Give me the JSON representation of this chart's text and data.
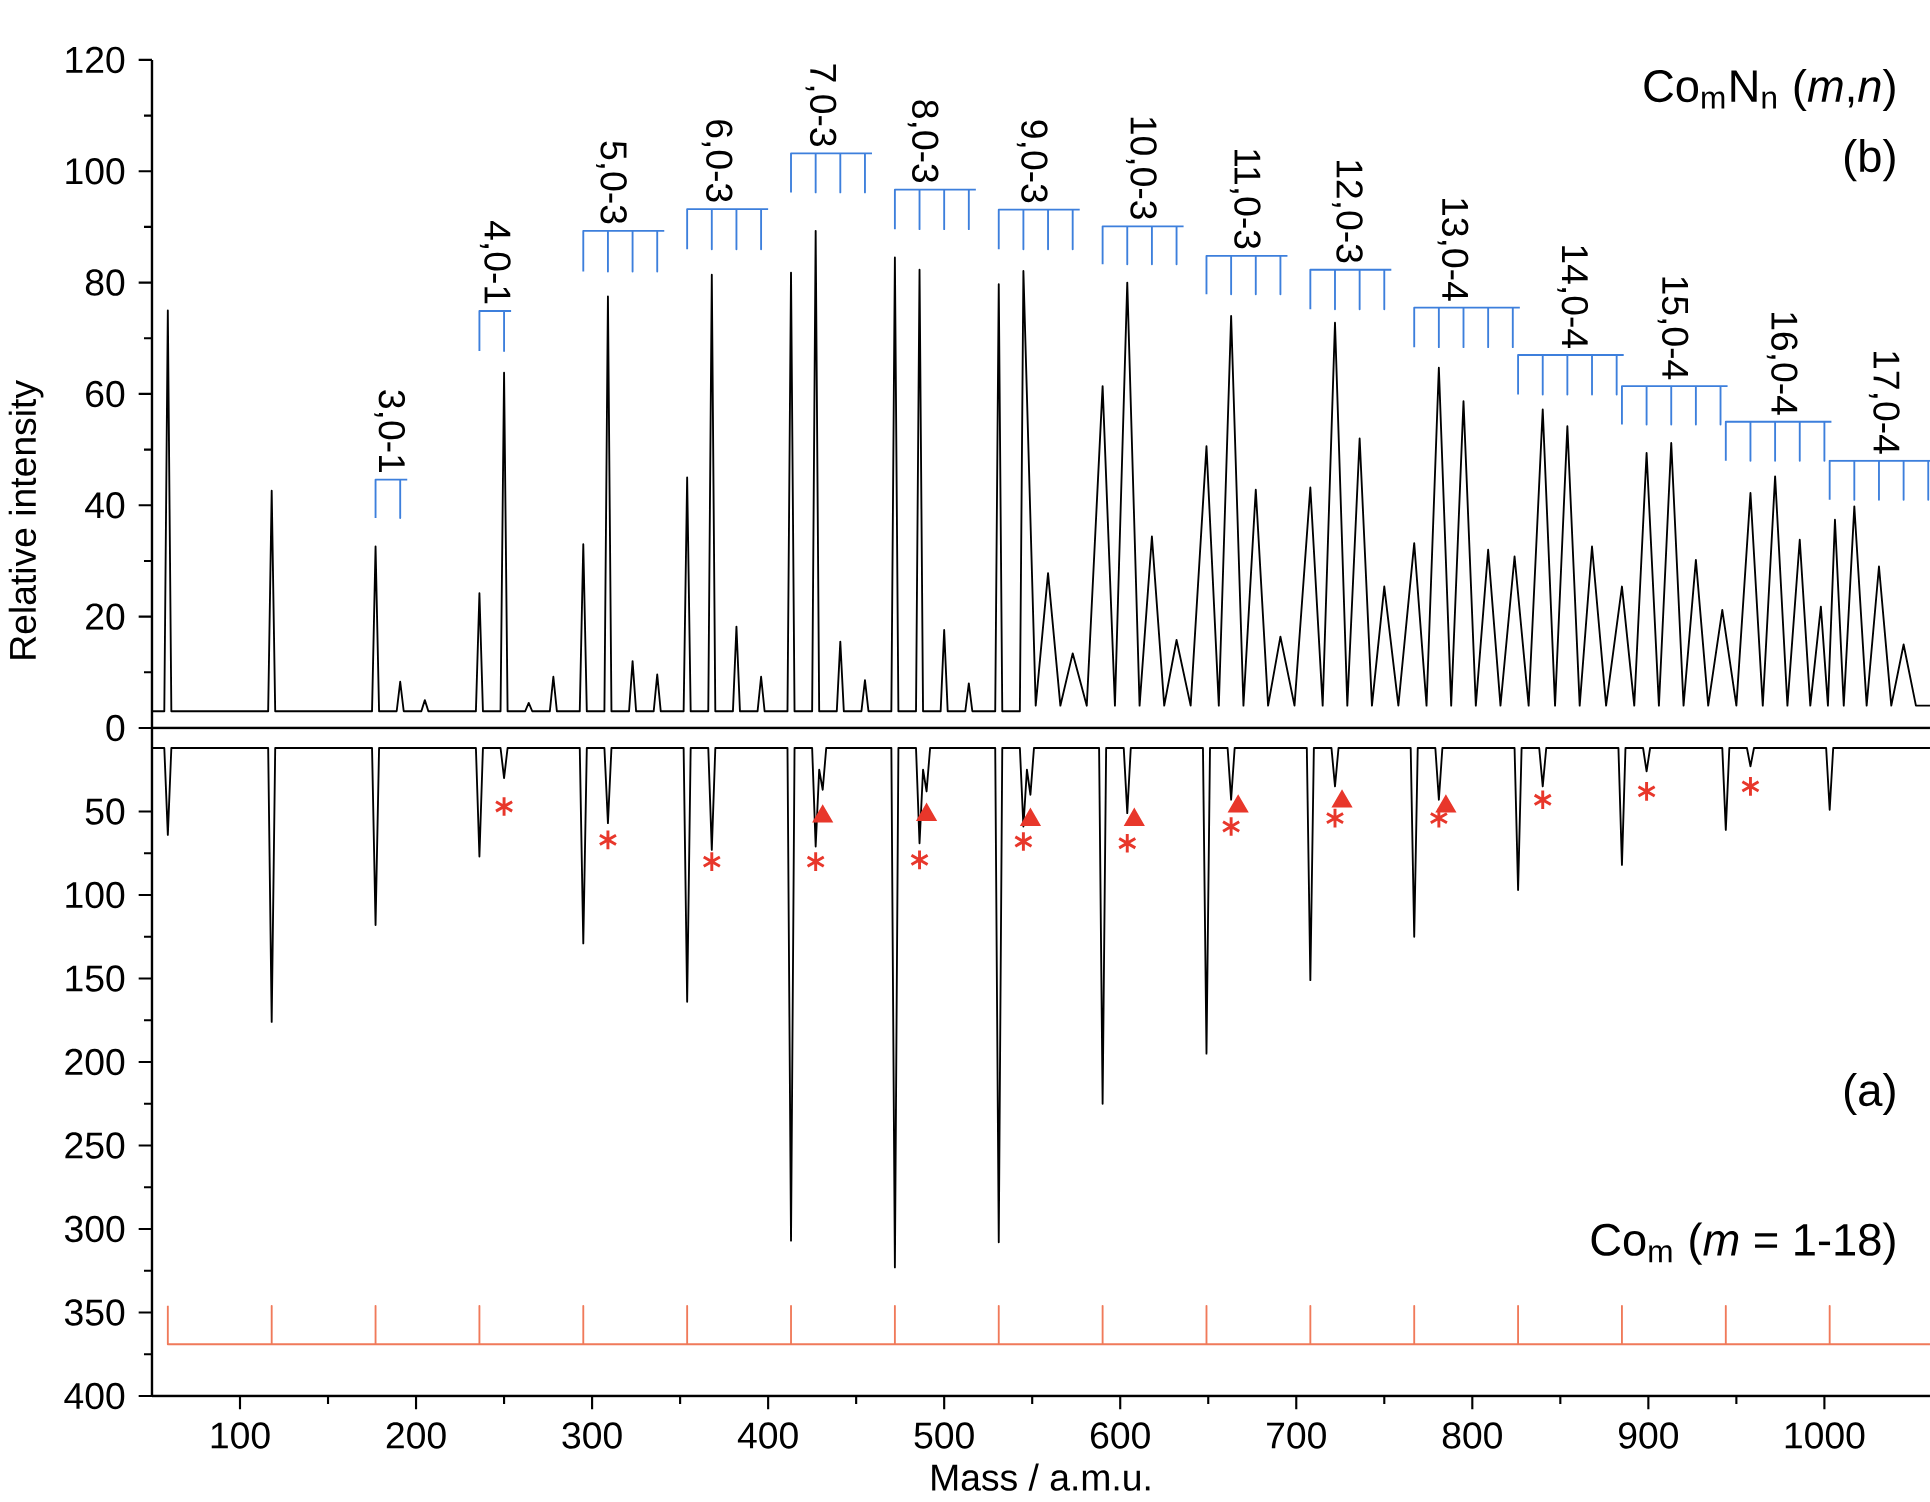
{
  "chart_data": [
    {
      "type": "line",
      "xlim": [
        50,
        1060
      ],
      "ylim": [
        0,
        120
      ],
      "yticks": [
        0,
        20,
        40,
        60,
        80,
        100,
        120
      ],
      "ylabel": "Relative intensity",
      "tick_labels": "y",
      "series": [
        {
          "color": "#000000",
          "x": [
            50,
            57,
            59,
            61,
            116,
            118,
            120,
            175,
            177,
            179,
            189,
            191,
            193,
            203,
            205,
            207,
            234,
            236,
            238,
            248,
            250,
            252,
            262,
            264,
            266,
            276,
            278,
            280,
            293,
            295,
            297,
            307,
            309,
            311,
            321,
            323,
            325,
            335,
            337,
            339,
            352,
            354,
            356,
            366,
            368,
            370,
            380,
            382,
            384,
            394,
            396,
            398,
            411,
            413,
            415,
            425,
            427,
            429,
            439,
            441,
            443,
            453,
            455,
            457,
            470,
            472,
            474,
            484,
            486,
            488,
            498,
            500,
            502,
            512,
            514,
            516,
            529,
            531,
            533,
            543,
            545,
            552,
            559,
            566,
            573,
            581,
            590,
            597,
            604,
            611,
            618,
            625,
            632,
            640,
            649,
            656,
            663,
            670,
            677,
            684,
            691,
            699,
            708,
            715,
            722,
            729,
            736,
            743,
            750,
            758,
            767,
            774,
            781,
            788,
            795,
            802,
            809,
            816,
            824,
            832,
            840,
            847,
            854,
            861,
            868,
            876,
            885,
            892,
            899,
            906,
            913,
            920,
            927,
            934,
            942,
            950,
            958,
            965,
            972,
            979,
            986,
            992,
            998,
            1002,
            1006,
            1011,
            1017,
            1024,
            1031,
            1038,
            1045,
            1052,
            1060
          ],
          "values": [
            3,
            3,
            75,
            3,
            3,
            42.6,
            3,
            3,
            32.6,
            3,
            3,
            8.3,
            3,
            3,
            5,
            3,
            3,
            24.2,
            3,
            3,
            63.8,
            3,
            3,
            4.5,
            3,
            3,
            9.2,
            3,
            3,
            33,
            3,
            3,
            77.5,
            3,
            3,
            12,
            3,
            3,
            9.6,
            3,
            3,
            45,
            3,
            3,
            81.4,
            3,
            3,
            18.2,
            3,
            3,
            9.2,
            3,
            3,
            81.8,
            3,
            3,
            89.3,
            3,
            3,
            15.5,
            3,
            3,
            8.6,
            3,
            3,
            84.5,
            3,
            3,
            82.3,
            3,
            3,
            17.6,
            3,
            3,
            8,
            3,
            3,
            79.7,
            3,
            3,
            82.1,
            4,
            27.8,
            4,
            13.4,
            4,
            61.4,
            4,
            80,
            4,
            34.4,
            4,
            15.8,
            4,
            50.6,
            4,
            74,
            4,
            42.8,
            4,
            16.4,
            4,
            43.2,
            4,
            72.8,
            4,
            52,
            4,
            25.4,
            4,
            33.2,
            4,
            64.7,
            4,
            58.7,
            4,
            32,
            4,
            30.8,
            4,
            57.2,
            4,
            54.2,
            4,
            32.6,
            4,
            25.4,
            4,
            49.4,
            4,
            51.2,
            4,
            30.2,
            4,
            21.2,
            4,
            42.2,
            4,
            45.2,
            4,
            33.8,
            4,
            21.8,
            4,
            37.4,
            4,
            39.8,
            4,
            29,
            4,
            15,
            4,
            4
          ]
        },
        {
          "color": "#3d7fdc",
          "x": [
            177,
            177,
            191,
            191,
            191,
            195
          ],
          "values": [
            37.7,
            44.6,
            44.6,
            37.7,
            44.6,
            44.6
          ]
        },
        {
          "color": "#3d7fdc",
          "x": [
            236,
            236,
            250,
            250,
            250,
            254
          ],
          "values": [
            67.7,
            74.9,
            74.9,
            67.7,
            74.9,
            74.9
          ]
        },
        {
          "color": "#3d7fdc",
          "x": [
            295,
            295,
            309,
            309,
            309,
            323,
            323,
            323,
            337,
            337,
            337,
            341
          ],
          "values": [
            82,
            89.3,
            89.3,
            82,
            89.3,
            89.3,
            82,
            89.3,
            89.3,
            82,
            89.3,
            89.3
          ]
        },
        {
          "color": "#3d7fdc",
          "x": [
            354,
            354,
            368,
            368,
            368,
            382,
            382,
            382,
            396,
            396,
            396,
            400
          ],
          "values": [
            86,
            93.2,
            93.2,
            86,
            93.2,
            93.2,
            86,
            93.2,
            93.2,
            86,
            93.2,
            93.2
          ]
        },
        {
          "color": "#3d7fdc",
          "x": [
            413,
            413,
            427,
            427,
            427,
            441,
            441,
            441,
            455,
            455,
            455,
            459
          ],
          "values": [
            96.2,
            103.2,
            103.2,
            96.2,
            103.2,
            103.2,
            96.2,
            103.2,
            103.2,
            96.2,
            103.2,
            103.2
          ]
        },
        {
          "color": "#3d7fdc",
          "x": [
            472,
            472,
            486,
            486,
            486,
            500,
            500,
            500,
            514,
            514,
            514,
            518
          ],
          "values": [
            89.6,
            96.7,
            96.7,
            89.6,
            96.7,
            96.7,
            89.6,
            96.7,
            96.7,
            89.6,
            96.7,
            96.7
          ]
        },
        {
          "color": "#3d7fdc",
          "x": [
            531,
            531,
            545,
            545,
            545,
            559,
            559,
            559,
            573,
            573,
            573,
            577
          ],
          "values": [
            86,
            93.1,
            93.1,
            86,
            93.1,
            93.1,
            86,
            93.1,
            93.1,
            86,
            93.1,
            93.1
          ]
        },
        {
          "color": "#3d7fdc",
          "x": [
            590,
            590,
            604,
            604,
            604,
            618,
            618,
            618,
            632,
            632,
            632,
            636
          ],
          "values": [
            83.3,
            90.1,
            90.1,
            83.3,
            90.1,
            90.1,
            83.3,
            90.1,
            90.1,
            83.3,
            90.1,
            90.1
          ]
        },
        {
          "color": "#3d7fdc",
          "x": [
            649,
            649,
            663,
            663,
            663,
            677,
            677,
            677,
            691,
            691,
            691,
            695
          ],
          "values": [
            77.9,
            84.8,
            84.8,
            77.9,
            84.8,
            84.8,
            77.9,
            84.8,
            84.8,
            77.9,
            84.8,
            84.8
          ]
        },
        {
          "color": "#3d7fdc",
          "x": [
            708,
            708,
            722,
            722,
            722,
            736,
            736,
            736,
            750,
            750,
            750,
            754
          ],
          "values": [
            75.2,
            82.3,
            82.3,
            75.2,
            82.3,
            82.3,
            75.2,
            82.3,
            82.3,
            75.2,
            82.3,
            82.3
          ]
        },
        {
          "color": "#3d7fdc",
          "x": [
            767,
            767,
            781,
            781,
            781,
            795,
            795,
            795,
            809,
            809,
            809,
            823,
            823,
            823,
            827
          ],
          "values": [
            68.4,
            75.5,
            75.5,
            68.4,
            75.5,
            75.5,
            68.4,
            75.5,
            75.5,
            68.4,
            75.5,
            75.5,
            68.4,
            75.5,
            75.5
          ]
        },
        {
          "color": "#3d7fdc",
          "x": [
            826,
            826,
            840,
            840,
            840,
            854,
            854,
            854,
            868,
            868,
            868,
            882,
            882,
            882,
            886
          ],
          "values": [
            59.9,
            67,
            67,
            59.9,
            67,
            67,
            59.9,
            67,
            67,
            59.9,
            67,
            67,
            59.9,
            67,
            67
          ]
        },
        {
          "color": "#3d7fdc",
          "x": [
            885,
            885,
            899,
            899,
            899,
            913,
            913,
            913,
            927,
            927,
            927,
            941,
            941,
            941,
            945
          ],
          "values": [
            54.5,
            61.4,
            61.4,
            54.5,
            61.4,
            61.4,
            54.5,
            61.4,
            61.4,
            54.5,
            61.4,
            61.4,
            54.5,
            61.4,
            61.4
          ]
        },
        {
          "color": "#3d7fdc",
          "x": [
            944,
            944,
            958,
            958,
            958,
            972,
            972,
            972,
            986,
            986,
            986,
            1000,
            1000,
            1000,
            1004
          ],
          "values": [
            48,
            55,
            55,
            48,
            55,
            55,
            48,
            55,
            55,
            48,
            55,
            55,
            48,
            55,
            55
          ]
        },
        {
          "color": "#3d7fdc",
          "x": [
            1003,
            1003,
            1017,
            1017,
            1017,
            1031,
            1031,
            1031,
            1045,
            1045,
            1045,
            1059,
            1059,
            1059,
            1060
          ],
          "values": [
            41,
            48,
            48,
            41,
            48,
            48,
            41,
            48,
            48,
            41,
            48,
            48,
            41,
            48,
            48
          ]
        }
      ],
      "annotations": [
        {
          "text": "3,0-1",
          "x": 185,
          "y": 44.6
        },
        {
          "text": "4,0-1",
          "x": 245,
          "y": 74.9
        },
        {
          "text": "5,0-3",
          "x": 311,
          "y": 89.3
        },
        {
          "text": "6,0-3",
          "x": 371,
          "y": 93.2
        },
        {
          "text": "7,0-3",
          "x": 430,
          "y": 103.2
        },
        {
          "text": "8,0-3",
          "x": 488,
          "y": 96.7
        },
        {
          "text": "9,0-3",
          "x": 550,
          "y": 93.1
        },
        {
          "text": "10,0-3",
          "x": 612,
          "y": 90.1
        },
        {
          "text": "11,0-3",
          "x": 671,
          "y": 84.8
        },
        {
          "text": "12,0-3",
          "x": 729,
          "y": 82.3
        },
        {
          "text": "13,0-4",
          "x": 789,
          "y": 75.5
        },
        {
          "text": "14,0-4",
          "x": 857,
          "y": 67
        },
        {
          "text": "15,0-4",
          "x": 914,
          "y": 61.4
        },
        {
          "text": "16,0-4",
          "x": 976,
          "y": 55
        },
        {
          "text": "17,0-4",
          "x": 1034,
          "y": 48
        },
        "Co$_{m}$N$_{n}$ (*m*,*n*)",
        "(b)"
      ]
    },
    {
      "type": "line",
      "xlim": [
        50,
        1060
      ],
      "ylim": [
        400,
        0
      ],
      "xticks": [
        100,
        200,
        300,
        400,
        500,
        600,
        700,
        800,
        900,
        1000
      ],
      "yticks": [
        50,
        100,
        150,
        200,
        250,
        300,
        350,
        400
      ],
      "xlabel": "Mass / a.m.u.",
      "series": [
        {
          "color": "#000000",
          "x": [
            50,
            57,
            59,
            61,
            116,
            118,
            120,
            175,
            177,
            179,
            234,
            236,
            238,
            248,
            250,
            252,
            293,
            295,
            297,
            307,
            309,
            311,
            352,
            354,
            356,
            366,
            368,
            370,
            411,
            413,
            415,
            425,
            427,
            429,
            431,
            433,
            470,
            472,
            474,
            484,
            486,
            488,
            490,
            492,
            529,
            531,
            533,
            543,
            545,
            547,
            549,
            551,
            588,
            590,
            592,
            602,
            604,
            606,
            647,
            649,
            651,
            661,
            663,
            665,
            706,
            708,
            710,
            720,
            722,
            724,
            765,
            767,
            769,
            779,
            781,
            783,
            824,
            826,
            828,
            838,
            840,
            842,
            883,
            885,
            887,
            897,
            899,
            901,
            942,
            944,
            946,
            956,
            958,
            960,
            1001,
            1003,
            1005,
            1060
          ],
          "values": [
            12,
            12,
            64,
            12,
            12,
            176,
            12,
            12,
            118,
            12,
            12,
            77,
            12,
            12,
            30,
            12,
            12,
            129,
            12,
            12,
            57,
            12,
            12,
            164,
            12,
            12,
            73,
            12,
            12,
            307,
            12,
            12,
            71,
            25,
            37,
            12,
            12,
            323,
            12,
            12,
            69,
            25,
            38,
            12,
            12,
            308,
            12,
            12,
            59,
            25,
            40,
            12,
            12,
            225,
            12,
            12,
            51,
            12,
            12,
            195,
            12,
            12,
            43,
            12,
            12,
            151,
            12,
            12,
            35,
            12,
            12,
            125,
            12,
            12,
            43,
            12,
            12,
            97,
            12,
            12,
            35,
            12,
            12,
            82,
            12,
            12,
            26,
            12,
            12,
            61,
            12,
            12,
            23,
            12,
            12,
            49,
            12,
            12
          ]
        },
        {
          "color": "#f07a5a",
          "x": [
            59,
            59,
            118,
            118,
            118,
            177,
            177,
            177,
            236,
            236,
            236,
            295,
            295,
            295,
            354,
            354,
            354,
            413,
            413,
            413,
            472,
            472,
            472,
            531,
            531,
            531,
            590,
            590,
            590,
            649,
            649,
            649,
            708,
            708,
            708,
            767,
            767,
            767,
            826,
            826,
            826,
            885,
            885,
            885,
            944,
            944,
            944,
            1003,
            1003,
            1003,
            1060
          ],
          "values": [
            346,
            369,
            369,
            346,
            369,
            369,
            346,
            369,
            369,
            346,
            369,
            369,
            346,
            369,
            369,
            346,
            369,
            369,
            346,
            369,
            369,
            346,
            369,
            369,
            346,
            369,
            369,
            346,
            369,
            369,
            346,
            369,
            369,
            346,
            369,
            369,
            346,
            369,
            369,
            346,
            369,
            369,
            346,
            369,
            369,
            346,
            369,
            369,
            346,
            369,
            369
          ]
        },
        {
          "type": "scatter",
          "marker": "cross",
          "color": "#e8372b",
          "x": [
            250,
            309,
            368,
            427,
            486,
            545,
            604,
            663,
            722,
            781,
            840,
            899,
            958
          ],
          "values": [
            47,
            67,
            80,
            80,
            79,
            68,
            69,
            59,
            54,
            54,
            43,
            38,
            35
          ]
        },
        {
          "type": "scatter",
          "marker": "triangle",
          "color": "#e8372b",
          "x": [
            431,
            490,
            549,
            608,
            667,
            726,
            785
          ],
          "values": [
            53,
            52,
            55,
            55,
            47,
            44,
            47
          ]
        }
      ],
      "annotations": [
        "(a)",
        "Co$_{m}$ (*m* = 1-18)"
      ]
    }
  ]
}
